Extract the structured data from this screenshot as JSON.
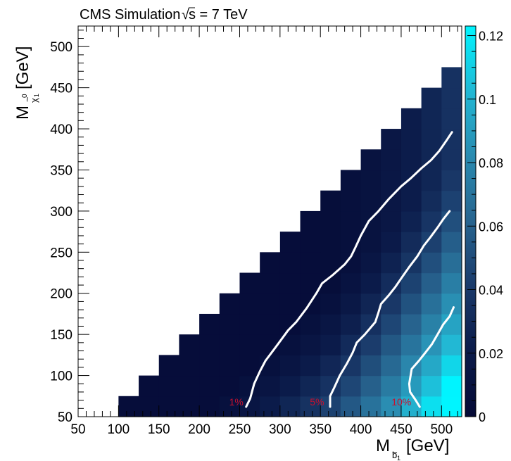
{
  "chart_data": {
    "type": "heatmap",
    "title_text": "CMS Simulation",
    "title_energy": "s = 7 TeV",
    "title_sqrt": "√",
    "x_label": {
      "main": "M",
      "sub": "b",
      "sub2": "1",
      "unit": "[GeV]"
    },
    "y_label": {
      "main": "M",
      "sub": "χ",
      "sub2": "1",
      "sup": "0",
      "unit": "[GeV]"
    },
    "x_range": [
      50,
      525
    ],
    "y_range": [
      50,
      525
    ],
    "z_range": [
      0,
      0.123
    ],
    "x_ticks": [
      50,
      100,
      150,
      200,
      250,
      300,
      350,
      400,
      450,
      500
    ],
    "y_ticks": [
      50,
      100,
      150,
      200,
      250,
      300,
      350,
      400,
      450,
      500
    ],
    "z_ticks": [
      0,
      0.02,
      0.04,
      0.06,
      0.08,
      0.1,
      0.12
    ],
    "z_tick_labels": [
      "0",
      "0.02",
      "0.04",
      "0.06",
      "0.08",
      "0.1",
      "0.12"
    ],
    "bin_width": 25,
    "colormap": [
      "#050a36",
      "#0b1b4a",
      "#1a3a6a",
      "#27648f",
      "#2a8bb0",
      "#22b8d4",
      "#00f5ff"
    ],
    "contours": [
      {
        "label": "1%",
        "label_pos": [
          237,
          62
        ],
        "points": [
          [
            258,
            62
          ],
          [
            263,
            72
          ],
          [
            268,
            90
          ],
          [
            275,
            105
          ],
          [
            282,
            118
          ],
          [
            295,
            135
          ],
          [
            310,
            155
          ],
          [
            320,
            165
          ],
          [
            333,
            182
          ],
          [
            345,
            200
          ],
          [
            352,
            212
          ],
          [
            365,
            222
          ],
          [
            380,
            235
          ],
          [
            388,
            245
          ],
          [
            393,
            255
          ],
          [
            400,
            270
          ],
          [
            410,
            288
          ],
          [
            422,
            300
          ],
          [
            435,
            315
          ],
          [
            450,
            330
          ],
          [
            462,
            340
          ],
          [
            475,
            352
          ],
          [
            487,
            362
          ],
          [
            497,
            373
          ],
          [
            507,
            387
          ],
          [
            513,
            396
          ]
        ]
      },
      {
        "label": "5%",
        "label_pos": [
          337,
          62
        ],
        "points": [
          [
            362,
            62
          ],
          [
            362,
            75
          ],
          [
            367,
            85
          ],
          [
            374,
            100
          ],
          [
            383,
            115
          ],
          [
            390,
            128
          ],
          [
            395,
            140
          ],
          [
            405,
            150
          ],
          [
            418,
            165
          ],
          [
            422,
            177
          ],
          [
            425,
            187
          ],
          [
            435,
            198
          ],
          [
            443,
            208
          ],
          [
            450,
            218
          ],
          [
            460,
            232
          ],
          [
            470,
            245
          ],
          [
            478,
            258
          ],
          [
            486,
            268
          ],
          [
            495,
            280
          ],
          [
            502,
            290
          ],
          [
            510,
            300
          ]
        ]
      },
      {
        "label": "10%",
        "label_pos": [
          438,
          62
        ],
        "points": [
          [
            473,
            62
          ],
          [
            468,
            70
          ],
          [
            461,
            80
          ],
          [
            460,
            90
          ],
          [
            463,
            108
          ],
          [
            472,
            118
          ],
          [
            480,
            128
          ],
          [
            488,
            138
          ],
          [
            495,
            150
          ],
          [
            502,
            162
          ],
          [
            510,
            172
          ],
          [
            515,
            183
          ]
        ]
      }
    ]
  }
}
